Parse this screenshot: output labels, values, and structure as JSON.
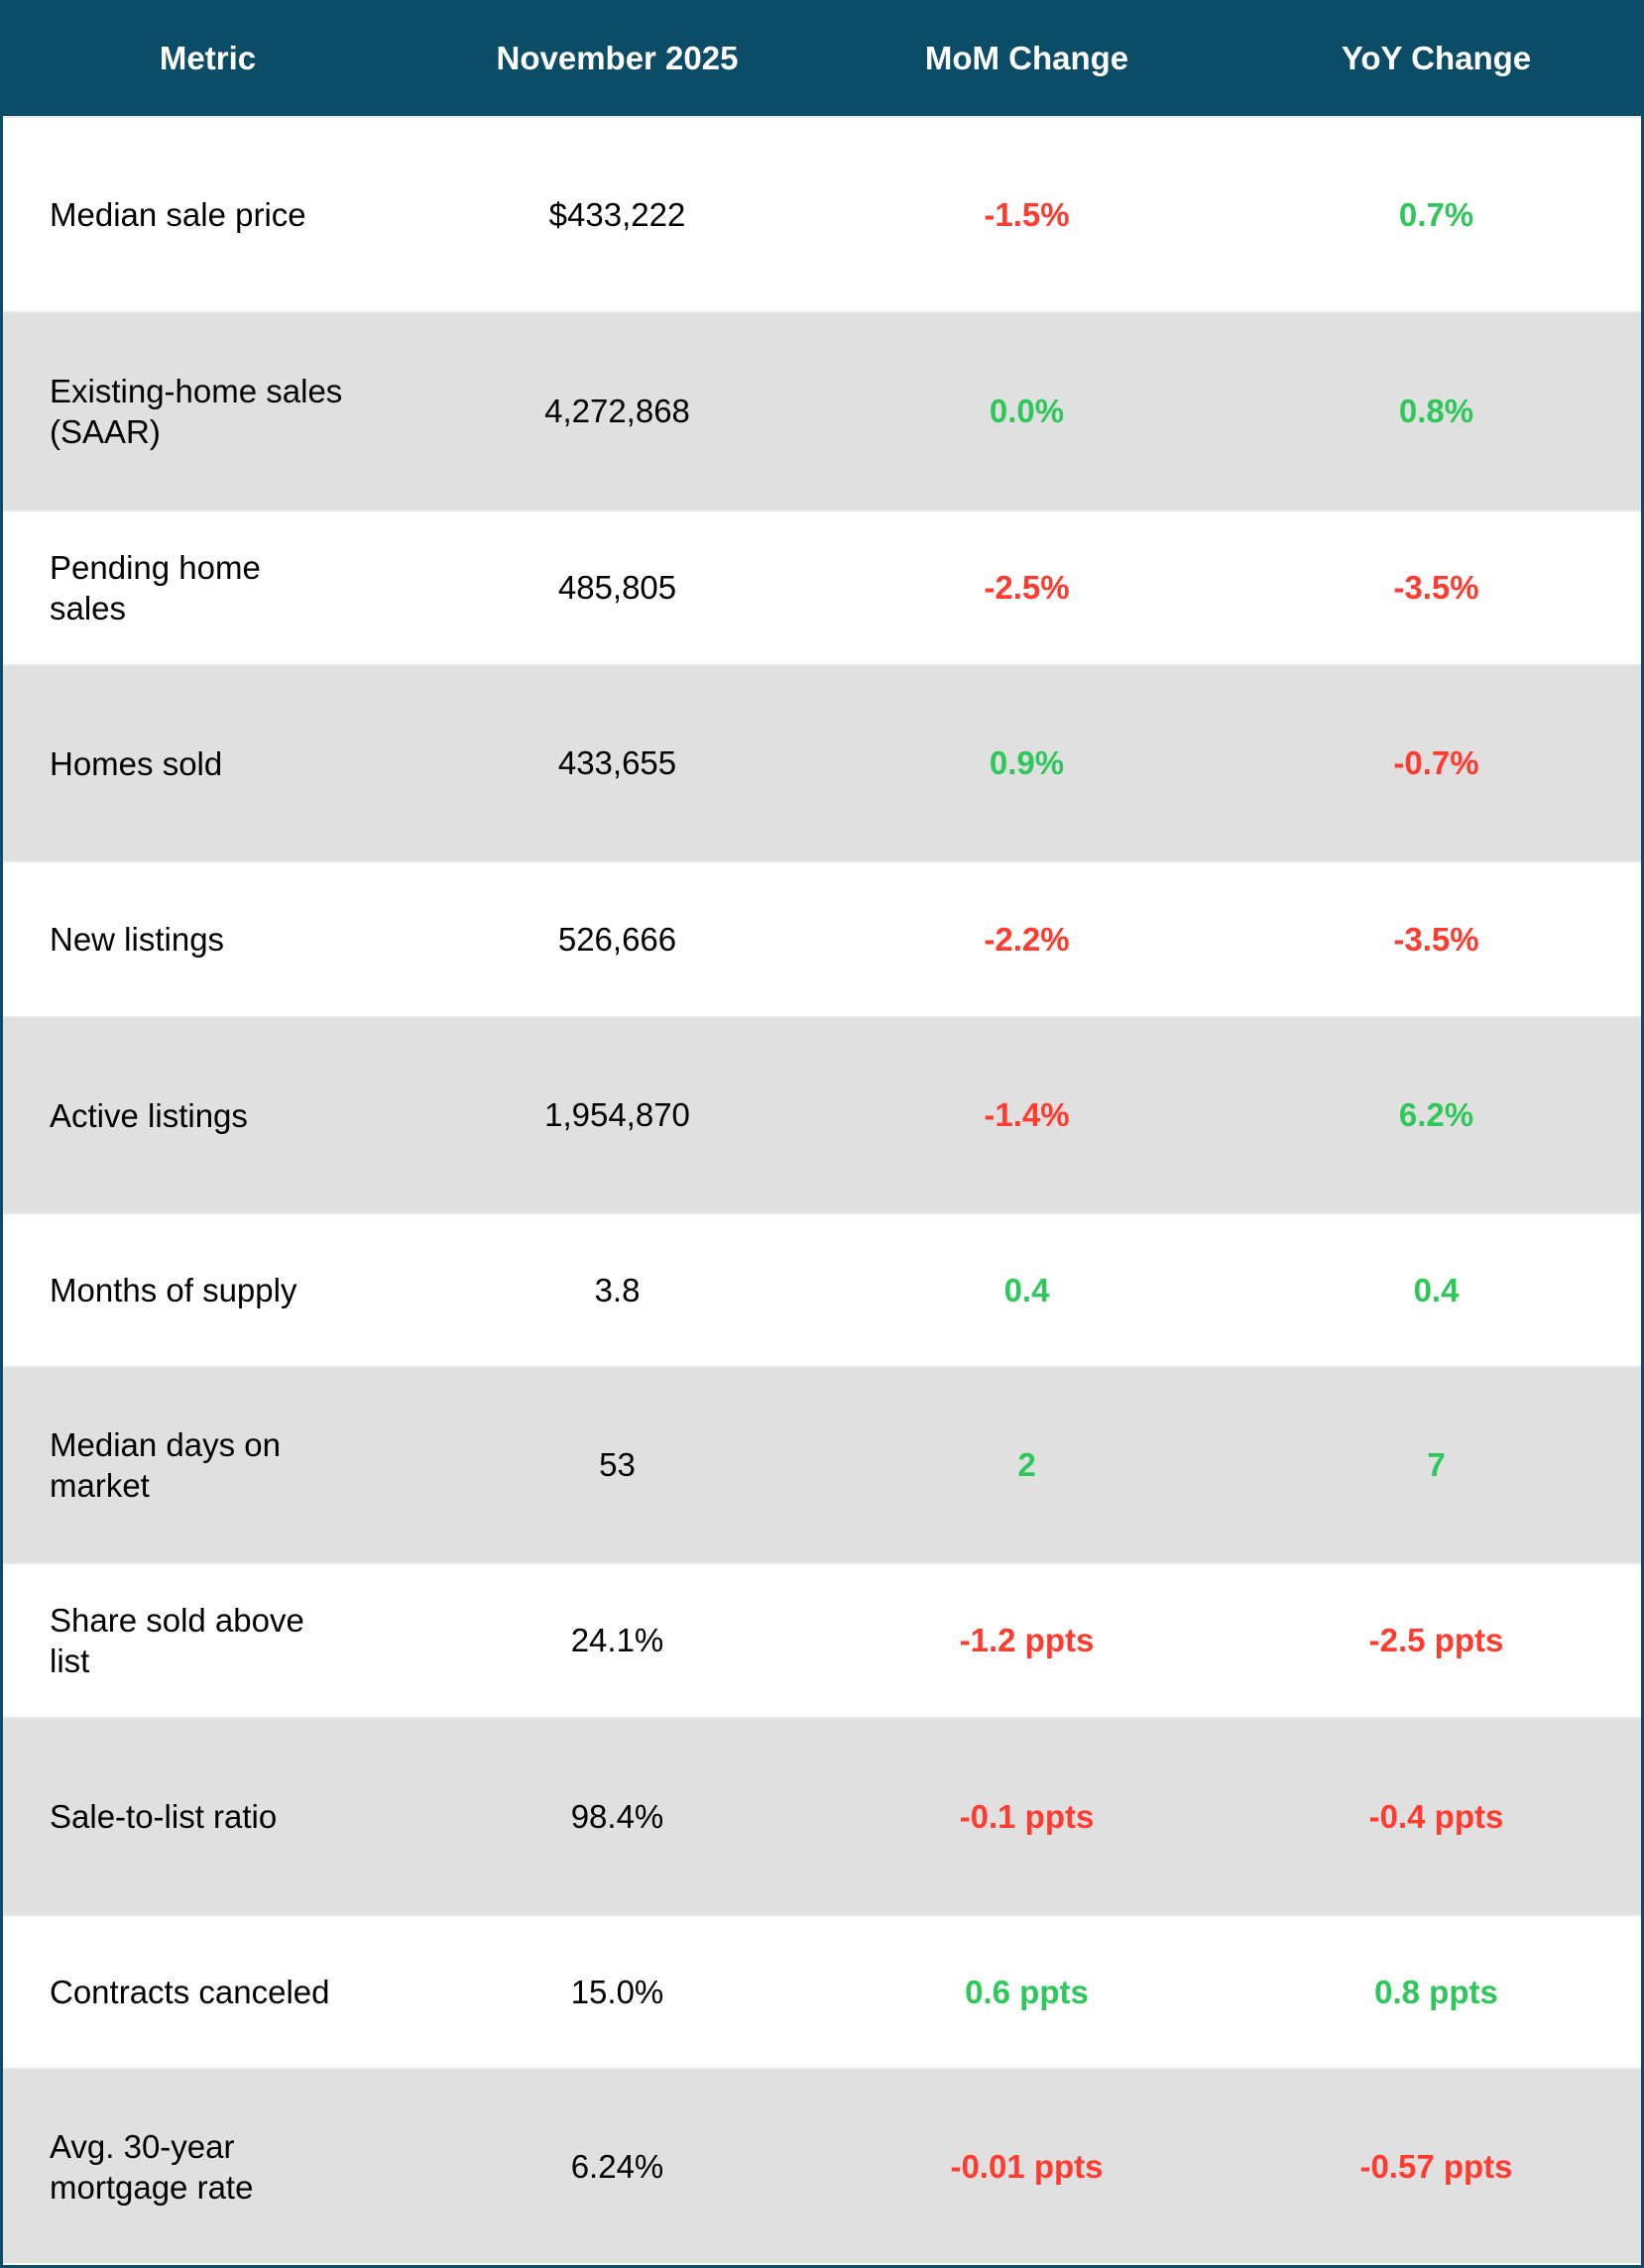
{
  "colors": {
    "header_bg": "#0b4c66",
    "positive": "#2ec75a",
    "negative": "#ff3b30",
    "stripe": "#e0e0e0"
  },
  "header": [
    "Metric",
    "November 2025",
    "MoM Change",
    "YoY Change"
  ],
  "rows": [
    {
      "metric": "Median sale price",
      "value": "$433,222",
      "mom": "-1.5%",
      "mom_dir": "neg",
      "yoy": "0.7%",
      "yoy_dir": "pos"
    },
    {
      "metric": "Existing-home sales\n(SAAR)",
      "value": "4,272,868",
      "mom": "0.0%",
      "mom_dir": "pos",
      "yoy": "0.8%",
      "yoy_dir": "pos"
    },
    {
      "metric": "Pending home\nsales",
      "value": "485,805",
      "mom": "-2.5%",
      "mom_dir": "neg",
      "yoy": "-3.5%",
      "yoy_dir": "neg"
    },
    {
      "metric": "Homes sold",
      "value": "433,655",
      "mom": "0.9%",
      "mom_dir": "pos",
      "yoy": "-0.7%",
      "yoy_dir": "neg"
    },
    {
      "metric": "New listings",
      "value": "526,666",
      "mom": "-2.2%",
      "mom_dir": "neg",
      "yoy": "-3.5%",
      "yoy_dir": "neg"
    },
    {
      "metric": "Active listings",
      "value": "1,954,870",
      "mom": "-1.4%",
      "mom_dir": "neg",
      "yoy": "6.2%",
      "yoy_dir": "pos"
    },
    {
      "metric": "Months of supply",
      "value": "3.8",
      "mom": "0.4",
      "mom_dir": "pos",
      "yoy": "0.4",
      "yoy_dir": "pos"
    },
    {
      "metric": "Median days on\nmarket",
      "value": "53",
      "mom": "2",
      "mom_dir": "pos",
      "yoy": "7",
      "yoy_dir": "pos"
    },
    {
      "metric": "Share sold above\nlist",
      "value": "24.1%",
      "mom": "-1.2 ppts",
      "mom_dir": "neg",
      "yoy": "-2.5 ppts",
      "yoy_dir": "neg"
    },
    {
      "metric": "Sale-to-list ratio",
      "value": "98.4%",
      "mom": "-0.1 ppts",
      "mom_dir": "neg",
      "yoy": "-0.4 ppts",
      "yoy_dir": "neg"
    },
    {
      "metric": "Contracts canceled",
      "value": "15.0%",
      "mom": "0.6 ppts",
      "mom_dir": "pos",
      "yoy": "0.8 ppts",
      "yoy_dir": "pos"
    },
    {
      "metric": "Avg. 30-year\nmortgage rate",
      "value": "6.24%",
      "mom": "-0.01 ppts",
      "mom_dir": "neg",
      "yoy": "-0.57 ppts",
      "yoy_dir": "neg"
    }
  ]
}
